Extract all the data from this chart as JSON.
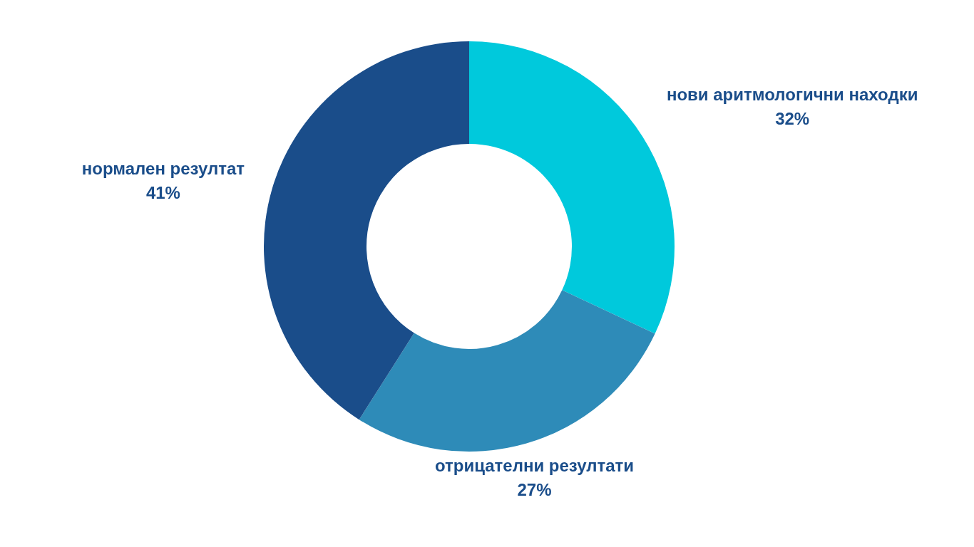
{
  "chart_data": {
    "type": "donut",
    "categories": [
      "нови аритмологични находки",
      "отрицателни резултати",
      "нормален резултат"
    ],
    "values": [
      32,
      27,
      41
    ],
    "value_labels": [
      "32%",
      "27%",
      "41%"
    ],
    "colors": [
      "#00c9dc",
      "#2e8bb8",
      "#1a4d8a"
    ],
    "legend": false
  }
}
